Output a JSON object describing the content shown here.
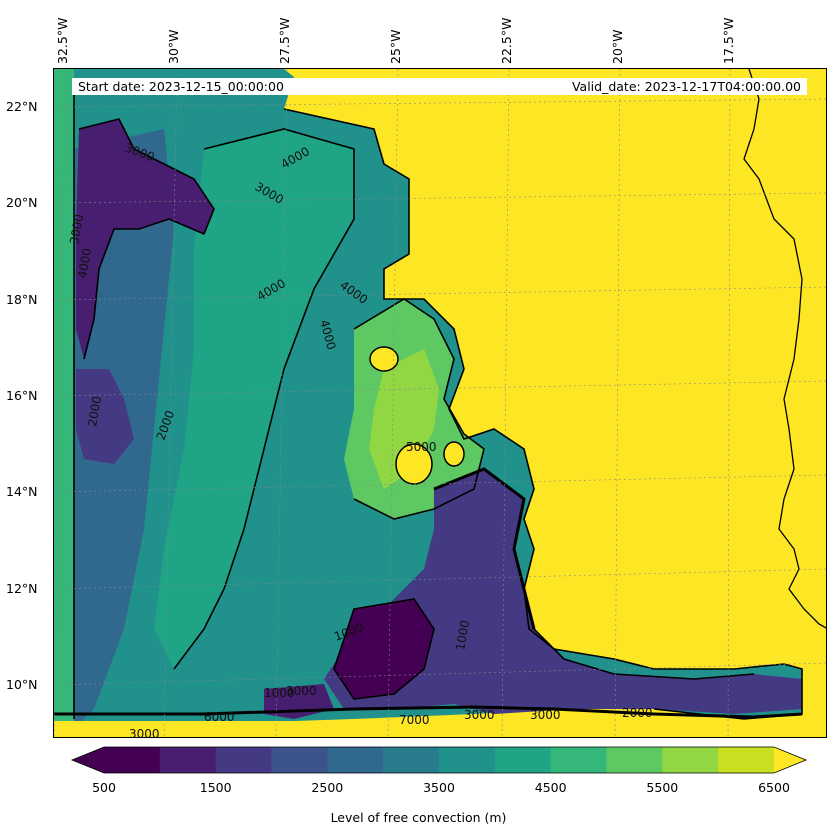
{
  "header": {
    "start_date": "Start date: 2023-12-15_00:00:00",
    "valid_date": "Valid_date: 2023-12-17T04:00:00.00"
  },
  "axes": {
    "lon_labels": [
      "32.5°W",
      "30°W",
      "27.5°W",
      "25°W",
      "22.5°W",
      "20°W",
      "17.5°W"
    ],
    "lat_labels": [
      "22°N",
      "20°N",
      "18°N",
      "16°N",
      "14°N",
      "12°N",
      "10°N"
    ]
  },
  "colorbar": {
    "ticks": [
      "500",
      "1500",
      "2500",
      "3500",
      "4500",
      "5500",
      "6500"
    ],
    "label": "Level of free convection (m)",
    "colors": [
      "#440154",
      "#481f70",
      "#443983",
      "#3b528b",
      "#31688e",
      "#287c8e",
      "#21918c",
      "#20a486",
      "#35b779",
      "#5ec962",
      "#90d743",
      "#c8e020",
      "#fde725"
    ]
  },
  "contour_labels": [
    "4000",
    "3000",
    "2000",
    "5000",
    "1000",
    "7000",
    "6000"
  ]
}
